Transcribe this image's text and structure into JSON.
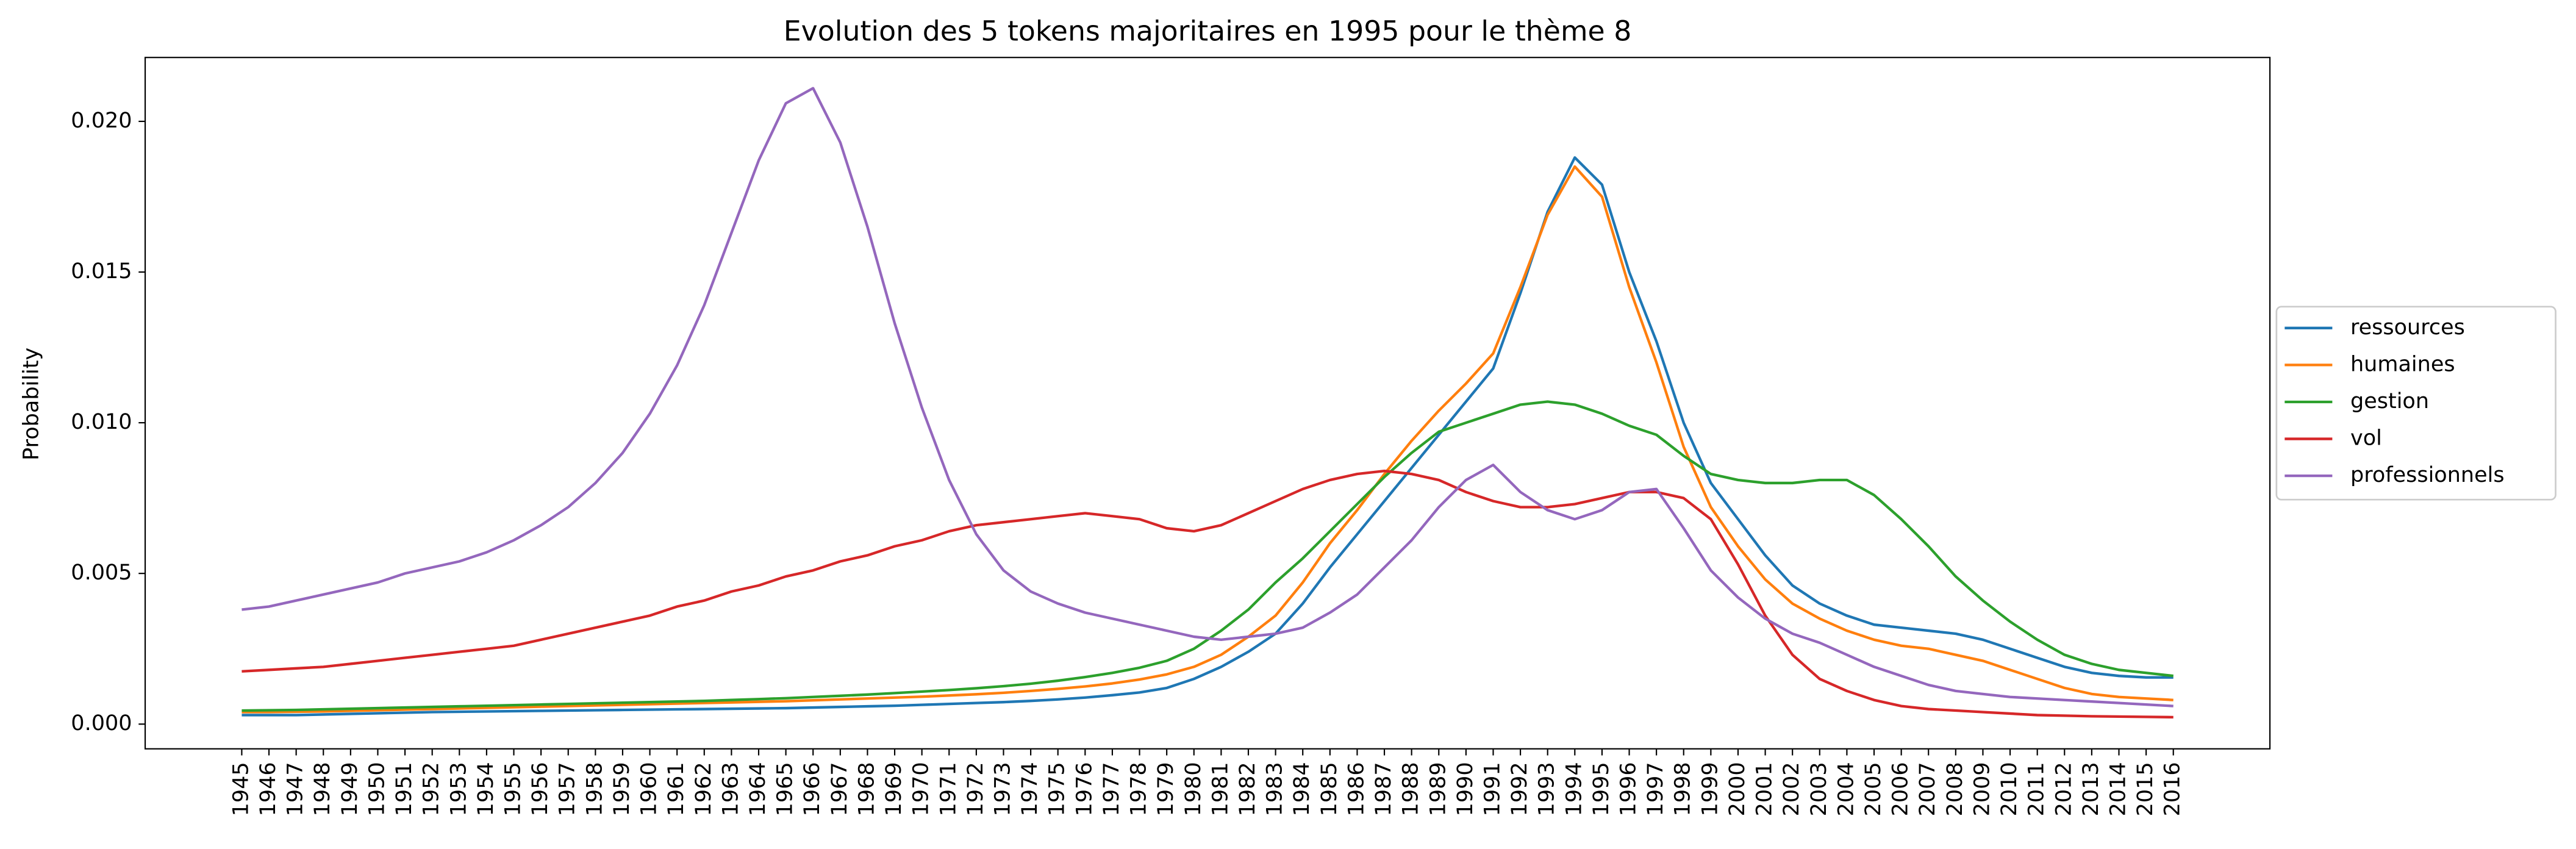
{
  "chart_data": {
    "type": "line",
    "title": "Evolution des 5 tokens majoritaires en 1995 pour le thème 8",
    "y_label": "Probability",
    "categories": [
      "1945",
      "1946",
      "1947",
      "1948",
      "1949",
      "1950",
      "1951",
      "1952",
      "1953",
      "1954",
      "1955",
      "1956",
      "1957",
      "1958",
      "1959",
      "1960",
      "1961",
      "1962",
      "1963",
      "1964",
      "1965",
      "1966",
      "1967",
      "1968",
      "1969",
      "1970",
      "1971",
      "1972",
      "1973",
      "1974",
      "1975",
      "1976",
      "1977",
      "1978",
      "1979",
      "1980",
      "1981",
      "1982",
      "1983",
      "1984",
      "1985",
      "1986",
      "1987",
      "1988",
      "1989",
      "1990",
      "1991",
      "1992",
      "1993",
      "1994",
      "1995",
      "1996",
      "1997",
      "1998",
      "1999",
      "2000",
      "2001",
      "2002",
      "2003",
      "2004",
      "2005",
      "2006",
      "2007",
      "2008",
      "2009",
      "2010",
      "2011",
      "2012",
      "2013",
      "2014",
      "2015",
      "2016"
    ],
    "ylim": [
      -0.00082,
      0.02212
    ],
    "yticks": [
      {
        "value": 0,
        "label": "0.000"
      },
      {
        "value": 0.005,
        "label": "0.005"
      },
      {
        "value": 0.01,
        "label": "0.010"
      },
      {
        "value": 0.015,
        "label": "0.015"
      },
      {
        "value": 0.02,
        "label": "0.020"
      }
    ],
    "grid": false,
    "legend": "center-left-outside",
    "series": [
      {
        "name": "ressources",
        "color": "#1f77b4",
        "values": [
          0.0003,
          0.0003,
          0.0003,
          0.00032,
          0.00034,
          0.00036,
          0.00038,
          0.0004,
          0.00041,
          0.00042,
          0.00043,
          0.00044,
          0.00045,
          0.00046,
          0.00047,
          0.00048,
          0.00049,
          0.0005,
          0.00051,
          0.00052,
          0.00053,
          0.00055,
          0.00057,
          0.00059,
          0.00061,
          0.00064,
          0.00067,
          0.0007,
          0.00073,
          0.00077,
          0.00082,
          0.00088,
          0.00096,
          0.00105,
          0.0012,
          0.0015,
          0.0019,
          0.0024,
          0.003,
          0.004,
          0.0052,
          0.0063,
          0.0074,
          0.0085,
          0.0096,
          0.0107,
          0.0118,
          0.0143,
          0.017,
          0.0188,
          0.0179,
          0.015,
          0.0127,
          0.01,
          0.008,
          0.0068,
          0.0056,
          0.0046,
          0.004,
          0.0036,
          0.0033,
          0.0032,
          0.0031,
          0.003,
          0.0028,
          0.0025,
          0.0022,
          0.0019,
          0.0017,
          0.0016,
          0.00155,
          0.00155
        ]
      },
      {
        "name": "humaines",
        "color": "#ff7f0e",
        "values": [
          0.0004,
          0.0004,
          0.00041,
          0.00042,
          0.00044,
          0.00046,
          0.00048,
          0.0005,
          0.00052,
          0.00054,
          0.00056,
          0.00058,
          0.0006,
          0.00062,
          0.00064,
          0.00066,
          0.00068,
          0.0007,
          0.00072,
          0.00074,
          0.00076,
          0.00079,
          0.00082,
          0.00085,
          0.00088,
          0.00091,
          0.00095,
          0.00099,
          0.00104,
          0.0011,
          0.00117,
          0.00125,
          0.00135,
          0.00148,
          0.00165,
          0.0019,
          0.0023,
          0.0029,
          0.0036,
          0.0047,
          0.006,
          0.0071,
          0.0083,
          0.0094,
          0.0104,
          0.0113,
          0.0123,
          0.0145,
          0.0169,
          0.0185,
          0.0175,
          0.0145,
          0.012,
          0.0092,
          0.0072,
          0.0059,
          0.0048,
          0.004,
          0.0035,
          0.0031,
          0.0028,
          0.0026,
          0.0025,
          0.0023,
          0.0021,
          0.0018,
          0.0015,
          0.0012,
          0.001,
          0.0009,
          0.00085,
          0.0008
        ]
      },
      {
        "name": "gestion",
        "color": "#2ca02c",
        "values": [
          0.00045,
          0.00046,
          0.00047,
          0.00049,
          0.00051,
          0.00053,
          0.00055,
          0.00057,
          0.00059,
          0.00061,
          0.00063,
          0.00065,
          0.00067,
          0.00069,
          0.00071,
          0.00073,
          0.00075,
          0.00077,
          0.0008,
          0.00083,
          0.00086,
          0.0009,
          0.00094,
          0.00098,
          0.00103,
          0.00108,
          0.00113,
          0.00119,
          0.00126,
          0.00134,
          0.00144,
          0.00156,
          0.0017,
          0.00187,
          0.0021,
          0.0025,
          0.0031,
          0.0038,
          0.0047,
          0.0055,
          0.0064,
          0.0073,
          0.0082,
          0.009,
          0.0097,
          0.01,
          0.0103,
          0.0106,
          0.0107,
          0.0106,
          0.0103,
          0.0099,
          0.0096,
          0.0089,
          0.0083,
          0.0081,
          0.008,
          0.008,
          0.0081,
          0.0081,
          0.0076,
          0.0068,
          0.0059,
          0.0049,
          0.0041,
          0.0034,
          0.0028,
          0.0023,
          0.002,
          0.0018,
          0.0017,
          0.0016
        ]
      },
      {
        "name": "vol",
        "color": "#d62728",
        "values": [
          0.00175,
          0.0018,
          0.00185,
          0.0019,
          0.002,
          0.0021,
          0.0022,
          0.0023,
          0.0024,
          0.0025,
          0.0026,
          0.0028,
          0.003,
          0.0032,
          0.0034,
          0.0036,
          0.0039,
          0.0041,
          0.0044,
          0.0046,
          0.0049,
          0.0051,
          0.0054,
          0.0056,
          0.0059,
          0.0061,
          0.0064,
          0.0066,
          0.0067,
          0.0068,
          0.0069,
          0.007,
          0.0069,
          0.0068,
          0.0065,
          0.0064,
          0.0066,
          0.007,
          0.0074,
          0.0078,
          0.0081,
          0.0083,
          0.0084,
          0.0083,
          0.0081,
          0.0077,
          0.0074,
          0.0072,
          0.0072,
          0.0073,
          0.0075,
          0.0077,
          0.0077,
          0.0075,
          0.0068,
          0.0053,
          0.0036,
          0.0023,
          0.0015,
          0.0011,
          0.0008,
          0.0006,
          0.0005,
          0.00045,
          0.0004,
          0.00035,
          0.0003,
          0.00028,
          0.00026,
          0.00025,
          0.00024,
          0.00023
        ]
      },
      {
        "name": "professionnels",
        "color": "#9467bd",
        "values": [
          0.0038,
          0.0039,
          0.0041,
          0.0043,
          0.0045,
          0.0047,
          0.005,
          0.0052,
          0.0054,
          0.0057,
          0.0061,
          0.0066,
          0.0072,
          0.008,
          0.009,
          0.0103,
          0.0119,
          0.0139,
          0.0163,
          0.0187,
          0.0206,
          0.0211,
          0.0193,
          0.0165,
          0.0133,
          0.0105,
          0.0081,
          0.0063,
          0.0051,
          0.0044,
          0.004,
          0.0037,
          0.0035,
          0.0033,
          0.0031,
          0.0029,
          0.0028,
          0.0029,
          0.003,
          0.0032,
          0.0037,
          0.0043,
          0.0052,
          0.0061,
          0.0072,
          0.0081,
          0.0086,
          0.0077,
          0.0071,
          0.0068,
          0.0071,
          0.0077,
          0.0078,
          0.0065,
          0.0051,
          0.0042,
          0.0035,
          0.003,
          0.0027,
          0.0023,
          0.0019,
          0.0016,
          0.0013,
          0.0011,
          0.001,
          0.0009,
          0.00085,
          0.0008,
          0.00075,
          0.0007,
          0.00065,
          0.0006
        ]
      }
    ]
  }
}
